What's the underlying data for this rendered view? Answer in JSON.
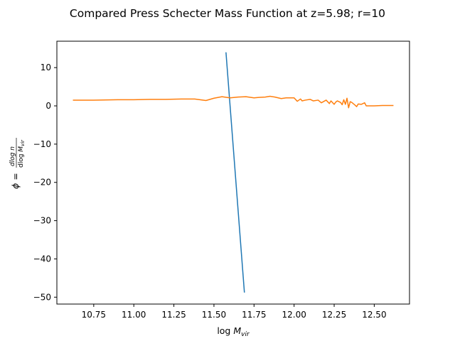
{
  "chart_data": {
    "type": "line",
    "title": "Compared Press Schecter Mass Function at z=5.98; r=10",
    "xlabel": "log M_vir",
    "ylabel": "φ = dlog n / dlog M_vir",
    "label_text": {
      "xlabel_main": "log ",
      "xlabel_var": "M",
      "xlabel_sub": "vir",
      "ylabel_lhs": "ϕ = ",
      "ylabel_num": "dlog n",
      "ylabel_den_main": "dlog ",
      "ylabel_den_var": "M",
      "ylabel_den_sub": "vir"
    },
    "xlim": [
      10.52,
      12.72
    ],
    "ylim": [
      -51.8,
      16.9
    ],
    "xticks": [
      10.75,
      11.0,
      11.25,
      11.5,
      11.75,
      12.0,
      12.25,
      12.5
    ],
    "xtick_labels": [
      "10.75",
      "11.00",
      "11.25",
      "11.50",
      "11.75",
      "12.00",
      "12.25",
      "12.50"
    ],
    "yticks": [
      -50,
      -40,
      -30,
      -20,
      -10,
      0,
      10
    ],
    "ytick_labels": [
      "−50",
      "−40",
      "−30",
      "−20",
      "−10",
      "0",
      "10"
    ],
    "grid": false,
    "legend": false,
    "series": [
      {
        "color": "#1f77b4",
        "x": [
          11.575,
          11.69
        ],
        "y": [
          14.0,
          -48.8
        ]
      },
      {
        "color": "#ff7f0e",
        "x": [
          10.62,
          10.75,
          10.9,
          11.0,
          11.1,
          11.2,
          11.3,
          11.38,
          11.45,
          11.5,
          11.55,
          11.6,
          11.65,
          11.7,
          11.75,
          11.78,
          11.82,
          11.85,
          11.88,
          11.92,
          11.95,
          12.0,
          12.02,
          12.04,
          12.05,
          12.07,
          12.1,
          12.12,
          12.15,
          12.17,
          12.2,
          12.22,
          12.23,
          12.25,
          12.26,
          12.27,
          12.29,
          12.3,
          12.31,
          12.32,
          12.33,
          12.34,
          12.35,
          12.36,
          12.38,
          12.39,
          12.4,
          12.42,
          12.44,
          12.45,
          12.5,
          12.55,
          12.62
        ],
        "y": [
          1.5,
          1.5,
          1.6,
          1.6,
          1.7,
          1.7,
          1.8,
          1.8,
          1.4,
          2.0,
          2.4,
          2.1,
          2.3,
          2.4,
          2.1,
          2.2,
          2.3,
          2.5,
          2.3,
          1.9,
          2.1,
          2.1,
          1.2,
          1.8,
          1.3,
          1.5,
          1.7,
          1.3,
          1.5,
          0.8,
          1.5,
          0.6,
          1.3,
          0.4,
          1.0,
          1.3,
          0.9,
          0.3,
          1.6,
          0.4,
          2.0,
          -0.5,
          1.1,
          0.9,
          0.2,
          -0.2,
          0.5,
          0.4,
          0.8,
          0.0,
          0.0,
          0.1,
          0.1
        ]
      }
    ]
  }
}
